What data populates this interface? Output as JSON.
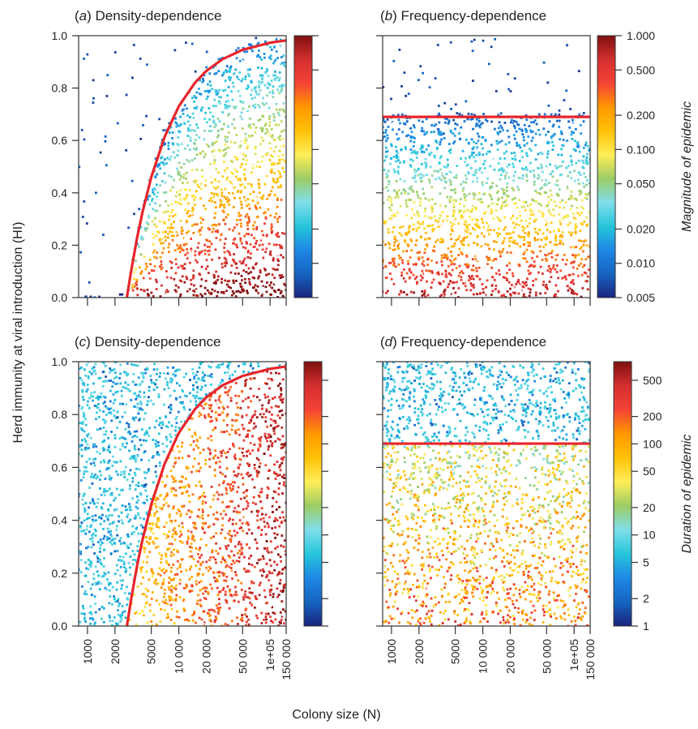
{
  "chart_data": [
    {
      "panel": "a",
      "type": "scatter",
      "title_letter": "a",
      "title_text": "Density-dependence",
      "x_log_scale": true,
      "xlim": [
        800,
        150000
      ],
      "ylim": [
        0,
        1
      ],
      "y_ticks": [
        "0.0",
        "0.2",
        "0.4",
        "0.6",
        "0.8",
        "1.0"
      ],
      "x_ticks": [
        "1000",
        "2000",
        "5000",
        "10 000",
        "20 000",
        "50 000",
        "1e+05",
        "150 000"
      ],
      "x_tick_labels_shown": false,
      "threshold_curve": {
        "color": "#e8252b",
        "x": [
          2700,
          3000,
          3500,
          4000,
          5000,
          7000,
          10000,
          15000,
          20000,
          30000,
          50000,
          100000,
          150000
        ],
        "y": [
          0.0,
          0.1,
          0.23,
          0.325,
          0.46,
          0.614,
          0.73,
          0.82,
          0.865,
          0.91,
          0.946,
          0.973,
          0.982
        ]
      },
      "colour_variable": "Magnitude of epidemic",
      "colorbar": {
        "title": "Magnitude of epidemic",
        "log_scale": true,
        "range": [
          0.005,
          1.0
        ],
        "ticks": [
          "0.005",
          "0.010",
          "0.020",
          "0.050",
          "0.100",
          "0.200",
          "0.500",
          "1.000"
        ],
        "tick_labels_shown": false
      },
      "grid": false
    },
    {
      "panel": "b",
      "type": "scatter",
      "title_letter": "b",
      "title_text": "Frequency-dependence",
      "x_log_scale": true,
      "xlim": [
        800,
        150000
      ],
      "ylim": [
        0,
        1
      ],
      "y_ticks": [
        "0.0",
        "0.2",
        "0.4",
        "0.6",
        "0.8",
        "1.0"
      ],
      "y_tick_labels_shown": false,
      "x_ticks": [
        "1000",
        "2000",
        "5000",
        "10 000",
        "20 000",
        "50 000",
        "1e+05",
        "150 000"
      ],
      "x_tick_labels_shown": false,
      "threshold_line": {
        "y": 0.69,
        "color": "#e8252b"
      },
      "colorbar": {
        "title": "Magnitude of epidemic",
        "log_scale": true,
        "range": [
          0.005,
          1.0
        ],
        "ticks": [
          "0.005",
          "0.010",
          "0.020",
          "0.050",
          "0.100",
          "0.200",
          "0.500",
          "1.000"
        ],
        "tick_labels_shown": true
      },
      "grid": false
    },
    {
      "panel": "c",
      "type": "scatter",
      "title_letter": "c",
      "title_text": "Density-dependence",
      "x_log_scale": true,
      "xlim": [
        800,
        150000
      ],
      "ylim": [
        0,
        1
      ],
      "y_ticks": [
        "0.0",
        "0.2",
        "0.4",
        "0.6",
        "0.8",
        "1.0"
      ],
      "x_ticks": [
        "1000",
        "2000",
        "5000",
        "10 000",
        "20 000",
        "50 000",
        "1e+05",
        "150 000"
      ],
      "x_tick_labels_shown": true,
      "threshold_curve": {
        "color": "#e8252b",
        "x": [
          2700,
          3000,
          3500,
          4000,
          5000,
          7000,
          10000,
          15000,
          20000,
          30000,
          50000,
          100000,
          150000
        ],
        "y": [
          0.0,
          0.1,
          0.23,
          0.325,
          0.46,
          0.614,
          0.73,
          0.82,
          0.865,
          0.91,
          0.946,
          0.973,
          0.982
        ]
      },
      "colour_variable": "Duration of epidemic",
      "colorbar": {
        "title": "Duration of epidemic",
        "log_scale": true,
        "range": [
          1,
          800
        ],
        "ticks": [
          "1",
          "2",
          "5",
          "10",
          "20",
          "50",
          "100",
          "200",
          "500"
        ],
        "tick_labels_shown": false
      },
      "grid": false
    },
    {
      "panel": "d",
      "type": "scatter",
      "title_letter": "d",
      "title_text": "Frequency-dependence",
      "x_log_scale": true,
      "xlim": [
        800,
        150000
      ],
      "ylim": [
        0,
        1
      ],
      "y_ticks": [
        "0.0",
        "0.2",
        "0.4",
        "0.6",
        "0.8",
        "1.0"
      ],
      "y_tick_labels_shown": false,
      "x_ticks": [
        "1000",
        "2000",
        "5000",
        "10 000",
        "20 000",
        "50 000",
        "1e+05",
        "150 000"
      ],
      "x_tick_labels_shown": true,
      "threshold_line": {
        "y": 0.69,
        "color": "#e8252b"
      },
      "colorbar": {
        "title": "Duration of epidemic",
        "log_scale": true,
        "range": [
          1,
          800
        ],
        "ticks": [
          "1",
          "2",
          "5",
          "10",
          "20",
          "50",
          "100",
          "200",
          "500"
        ],
        "tick_labels_shown": true
      },
      "grid": false
    }
  ],
  "shared_axes": {
    "ylabel": "Herd immunity at viral introduction (HI)",
    "xlabel": "Colony size (N)"
  },
  "colormap": [
    "#1a237e",
    "#1565c0",
    "#1e88e5",
    "#26c6da",
    "#80deea",
    "#9ccc65",
    "#ffee58",
    "#ffc107",
    "#ff9800",
    "#f44336",
    "#d32f2f",
    "#7f1010"
  ]
}
